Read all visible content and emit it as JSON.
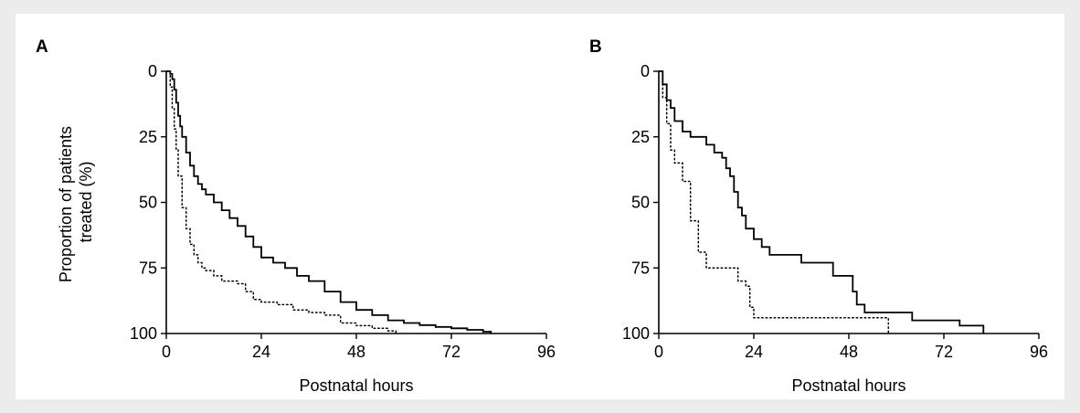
{
  "chart_data": [
    {
      "type": "line",
      "panel_label": "A",
      "xlabel": "Postnatal hours",
      "ylabel": "Proportion of patients treated (%)",
      "ylabel_lines": [
        "Proportion of patients",
        "treated (%)"
      ],
      "xlim": [
        0,
        96
      ],
      "ylim": [
        0,
        100
      ],
      "y_inverted": true,
      "xticks": [
        "0",
        "24",
        "48",
        "72",
        "96"
      ],
      "yticks": [
        "0",
        "25",
        "50",
        "75",
        "100"
      ],
      "grid": false,
      "series": [
        {
          "style": "solid",
          "x": [
            0,
            1,
            1.5,
            2,
            2.5,
            3,
            3.5,
            4,
            5,
            6,
            7,
            8,
            9,
            10,
            12,
            14,
            16,
            18,
            20,
            22,
            24,
            27,
            30,
            33,
            36,
            40,
            44,
            48,
            52,
            56,
            60,
            64,
            68,
            72,
            76,
            80,
            82
          ],
          "y": [
            0,
            1,
            3,
            7,
            12,
            17,
            21,
            25,
            31,
            36,
            40,
            43,
            45,
            47,
            50,
            53,
            56,
            59,
            63,
            67,
            71,
            73,
            75,
            78,
            80,
            84,
            88,
            91,
            93,
            95,
            96,
            96.8,
            97.5,
            98,
            98.6,
            99.3,
            100
          ]
        },
        {
          "style": "dotted",
          "x": [
            0,
            1,
            1.5,
            2,
            2.5,
            3,
            4,
            5,
            6,
            7,
            8,
            9,
            10,
            12,
            14,
            16,
            18,
            20,
            22,
            24,
            28,
            32,
            36,
            40,
            44,
            48,
            52,
            56,
            58
          ],
          "y": [
            0,
            6,
            14,
            22,
            30,
            40,
            52,
            60,
            66,
            70,
            73,
            75,
            76,
            78,
            80,
            80,
            81,
            84,
            87,
            88,
            89,
            91,
            92,
            93,
            96,
            97,
            98,
            99,
            100
          ]
        }
      ]
    },
    {
      "type": "line",
      "panel_label": "B",
      "xlabel": "Postnatal hours",
      "ylabel": "",
      "xlim": [
        0,
        96
      ],
      "ylim": [
        0,
        100
      ],
      "y_inverted": true,
      "xticks": [
        "0",
        "24",
        "48",
        "72",
        "96"
      ],
      "yticks": [
        "0",
        "25",
        "50",
        "75",
        "100"
      ],
      "grid": false,
      "series": [
        {
          "style": "solid",
          "x": [
            0,
            1,
            2,
            3,
            4,
            6,
            8,
            10,
            12,
            14,
            16,
            17,
            18,
            19,
            20,
            21,
            22,
            24,
            26,
            28,
            32,
            36,
            44,
            48,
            49,
            50,
            52,
            56,
            64,
            76,
            80,
            82
          ],
          "y": [
            0,
            5,
            11,
            14,
            19,
            23,
            25,
            25,
            28,
            31,
            33,
            37,
            40,
            46,
            52,
            55,
            60,
            64,
            67,
            70,
            70,
            73,
            78,
            78,
            84,
            89,
            92,
            92,
            95,
            97,
            97,
            100
          ]
        },
        {
          "style": "dotted",
          "x": [
            0,
            1,
            2,
            3,
            4,
            6,
            8,
            10,
            12,
            14,
            16,
            18,
            20,
            22,
            23,
            24,
            30,
            40,
            50,
            58
          ],
          "y": [
            0,
            10,
            20,
            30,
            35,
            42,
            57,
            69,
            75,
            75,
            75,
            75,
            80,
            82,
            90,
            94,
            94,
            94,
            94,
            100
          ]
        }
      ]
    }
  ]
}
